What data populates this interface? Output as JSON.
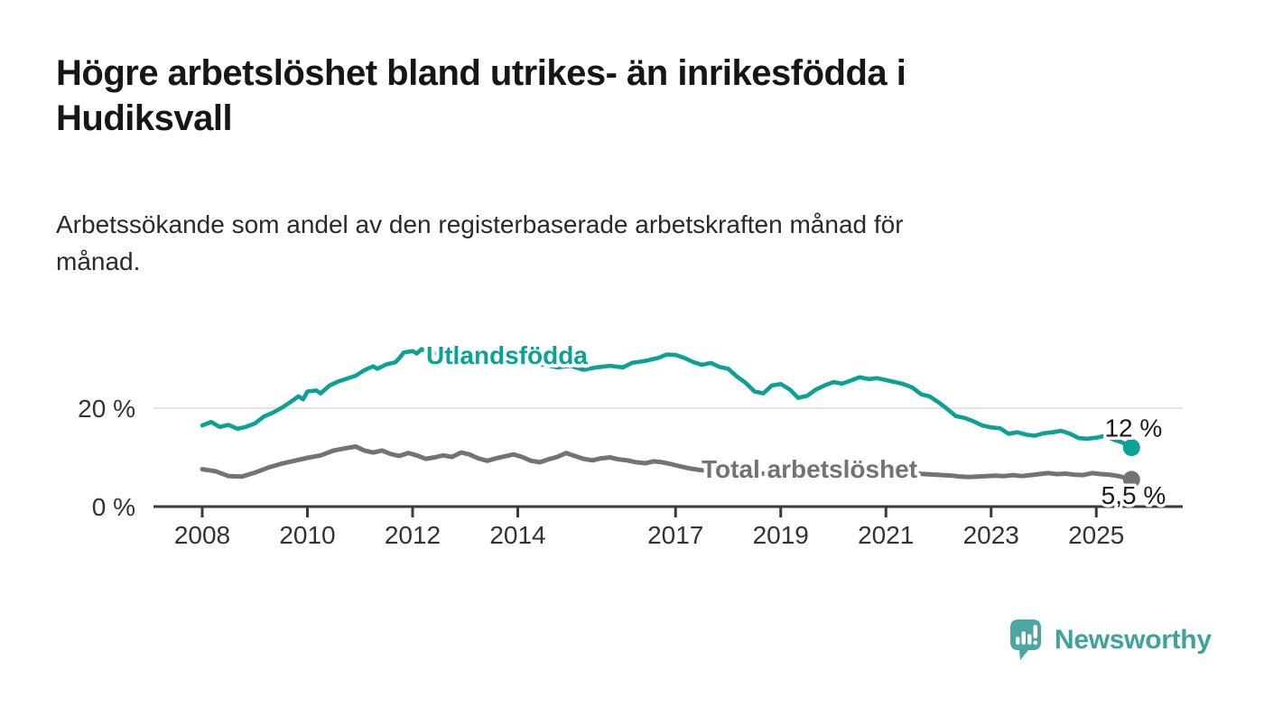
{
  "title": {
    "line1": "Högre arbetslöshet bland utrikes- än inrikesfödda i",
    "line2": "Hudiksvall"
  },
  "subtitle": {
    "line1": "Arbetssökande som andel av den registerbaserade arbetskraften månad för",
    "line2": "månad."
  },
  "branding": {
    "name": "Newsworthy",
    "bubble_color": "#4BA7A0",
    "wordmark_color": "#3BA49C"
  },
  "colors": {
    "axis": "#3b3b3b",
    "tick_label": "#333333",
    "gridline": "#e4e4e4",
    "end_label_text": "#1a1a1a",
    "background": "#ffffff"
  },
  "chart_data": {
    "type": "line",
    "title": "Högre arbetslöshet bland utrikes- än inrikesfödda i Hudiksvall",
    "subtitle": "Arbetssökande som andel av den registerbaserade arbetskraften månad för månad.",
    "x_unit": "year (monthly observations)",
    "y_unit": "percent of register-based labour force",
    "x_ticks": [
      "2008",
      "2010",
      "2012",
      "2014",
      "2017",
      "2019",
      "2021",
      "2023",
      "2025"
    ],
    "y_ticks": [
      {
        "value": 0,
        "label": "0 %"
      },
      {
        "value": 20,
        "label": "20 %"
      }
    ],
    "x_range": [
      2007.6,
      2026.3
    ],
    "y_range": [
      0,
      36
    ],
    "grid": "y-only",
    "legend_position": "inline-labels",
    "series": [
      {
        "name": "Utlandsfödda",
        "color": "#0BA295",
        "end_value_label": "12 %",
        "end_value": 12,
        "points": [
          [
            2008.0,
            16.5
          ],
          [
            2008.17,
            17.2
          ],
          [
            2008.33,
            16.2
          ],
          [
            2008.5,
            16.6
          ],
          [
            2008.67,
            15.8
          ],
          [
            2008.83,
            16.2
          ],
          [
            2009.0,
            16.9
          ],
          [
            2009.17,
            18.3
          ],
          [
            2009.33,
            19.0
          ],
          [
            2009.5,
            20.0
          ],
          [
            2009.67,
            21.2
          ],
          [
            2009.83,
            22.4
          ],
          [
            2009.92,
            21.8
          ],
          [
            2010.0,
            23.4
          ],
          [
            2010.17,
            23.6
          ],
          [
            2010.25,
            23.0
          ],
          [
            2010.42,
            24.6
          ],
          [
            2010.58,
            25.4
          ],
          [
            2010.75,
            26.0
          ],
          [
            2010.92,
            26.6
          ],
          [
            2011.08,
            27.7
          ],
          [
            2011.25,
            28.5
          ],
          [
            2011.33,
            28.0
          ],
          [
            2011.5,
            28.9
          ],
          [
            2011.67,
            29.3
          ],
          [
            2011.75,
            30.2
          ],
          [
            2011.83,
            31.3
          ],
          [
            2012.0,
            31.6
          ],
          [
            2012.08,
            31.1
          ],
          [
            2012.17,
            32.0
          ],
          [
            2012.33,
            31.3
          ],
          [
            2012.5,
            31.0
          ],
          [
            2012.75,
            30.6
          ],
          [
            2013.0,
            30.9
          ],
          [
            2013.25,
            30.2
          ],
          [
            2013.5,
            30.5
          ],
          [
            2013.75,
            29.6
          ],
          [
            2014.0,
            29.9
          ],
          [
            2014.25,
            29.0
          ],
          [
            2014.5,
            28.8
          ],
          [
            2014.75,
            28.3
          ],
          [
            2015.0,
            28.6
          ],
          [
            2015.25,
            27.8
          ],
          [
            2015.5,
            28.3
          ],
          [
            2015.75,
            28.6
          ],
          [
            2016.0,
            28.3
          ],
          [
            2016.17,
            29.2
          ],
          [
            2016.42,
            29.6
          ],
          [
            2016.67,
            30.2
          ],
          [
            2016.83,
            30.9
          ],
          [
            2017.0,
            30.8
          ],
          [
            2017.17,
            30.2
          ],
          [
            2017.33,
            29.4
          ],
          [
            2017.5,
            28.8
          ],
          [
            2017.67,
            29.2
          ],
          [
            2017.83,
            28.4
          ],
          [
            2018.0,
            28.0
          ],
          [
            2018.17,
            26.4
          ],
          [
            2018.33,
            25.2
          ],
          [
            2018.5,
            23.4
          ],
          [
            2018.67,
            23.0
          ],
          [
            2018.83,
            24.6
          ],
          [
            2019.0,
            24.9
          ],
          [
            2019.17,
            23.8
          ],
          [
            2019.33,
            22.1
          ],
          [
            2019.5,
            22.5
          ],
          [
            2019.67,
            23.8
          ],
          [
            2019.83,
            24.6
          ],
          [
            2020.0,
            25.3
          ],
          [
            2020.17,
            25.0
          ],
          [
            2020.33,
            25.6
          ],
          [
            2020.5,
            26.3
          ],
          [
            2020.67,
            25.9
          ],
          [
            2020.83,
            26.1
          ],
          [
            2021.0,
            25.7
          ],
          [
            2021.17,
            25.3
          ],
          [
            2021.33,
            24.9
          ],
          [
            2021.5,
            24.2
          ],
          [
            2021.67,
            22.8
          ],
          [
            2021.83,
            22.4
          ],
          [
            2022.0,
            21.2
          ],
          [
            2022.17,
            19.8
          ],
          [
            2022.33,
            18.4
          ],
          [
            2022.5,
            18.0
          ],
          [
            2022.67,
            17.3
          ],
          [
            2022.83,
            16.5
          ],
          [
            2023.0,
            16.1
          ],
          [
            2023.17,
            15.9
          ],
          [
            2023.33,
            14.8
          ],
          [
            2023.5,
            15.1
          ],
          [
            2023.67,
            14.6
          ],
          [
            2023.83,
            14.4
          ],
          [
            2024.0,
            14.9
          ],
          [
            2024.17,
            15.1
          ],
          [
            2024.33,
            15.4
          ],
          [
            2024.5,
            14.8
          ],
          [
            2024.67,
            13.9
          ],
          [
            2024.83,
            13.8
          ],
          [
            2025.0,
            14.0
          ],
          [
            2025.17,
            14.4
          ],
          [
            2025.33,
            13.6
          ],
          [
            2025.5,
            13.0
          ],
          [
            2025.67,
            12.0
          ]
        ]
      },
      {
        "name": "Total arbetslöshet",
        "color": "#737373",
        "end_value_label": "5,5 %",
        "end_value": 5.5,
        "points": [
          [
            2008.0,
            7.6
          ],
          [
            2008.25,
            7.2
          ],
          [
            2008.5,
            6.2
          ],
          [
            2008.75,
            6.1
          ],
          [
            2009.0,
            6.9
          ],
          [
            2009.25,
            7.9
          ],
          [
            2009.5,
            8.7
          ],
          [
            2009.75,
            9.3
          ],
          [
            2010.0,
            9.9
          ],
          [
            2010.25,
            10.4
          ],
          [
            2010.5,
            11.4
          ],
          [
            2010.75,
            11.9
          ],
          [
            2010.92,
            12.2
          ],
          [
            2011.08,
            11.4
          ],
          [
            2011.25,
            11.0
          ],
          [
            2011.42,
            11.4
          ],
          [
            2011.58,
            10.7
          ],
          [
            2011.75,
            10.3
          ],
          [
            2011.92,
            10.9
          ],
          [
            2012.08,
            10.4
          ],
          [
            2012.25,
            9.7
          ],
          [
            2012.42,
            10.0
          ],
          [
            2012.58,
            10.4
          ],
          [
            2012.75,
            10.1
          ],
          [
            2012.92,
            11.0
          ],
          [
            2013.08,
            10.6
          ],
          [
            2013.25,
            9.8
          ],
          [
            2013.42,
            9.3
          ],
          [
            2013.58,
            9.8
          ],
          [
            2013.75,
            10.2
          ],
          [
            2013.92,
            10.6
          ],
          [
            2014.08,
            10.1
          ],
          [
            2014.25,
            9.3
          ],
          [
            2014.42,
            9.0
          ],
          [
            2014.58,
            9.6
          ],
          [
            2014.75,
            10.1
          ],
          [
            2014.92,
            10.9
          ],
          [
            2015.08,
            10.3
          ],
          [
            2015.25,
            9.7
          ],
          [
            2015.42,
            9.4
          ],
          [
            2015.58,
            9.8
          ],
          [
            2015.75,
            10.0
          ],
          [
            2015.92,
            9.6
          ],
          [
            2016.08,
            9.4
          ],
          [
            2016.25,
            9.0
          ],
          [
            2016.42,
            8.8
          ],
          [
            2016.58,
            9.2
          ],
          [
            2016.75,
            9.0
          ],
          [
            2016.92,
            8.6
          ],
          [
            2017.08,
            8.2
          ],
          [
            2017.25,
            7.8
          ],
          [
            2017.42,
            7.5
          ],
          [
            2017.58,
            7.3
          ],
          [
            2017.75,
            7.2
          ],
          [
            2017.92,
            7.4
          ],
          [
            2018.08,
            7.2
          ],
          [
            2018.25,
            6.9
          ],
          [
            2018.42,
            6.7
          ],
          [
            2018.58,
            6.6
          ],
          [
            2018.75,
            6.8
          ],
          [
            2018.92,
            7.0
          ],
          [
            2019.08,
            6.8
          ],
          [
            2019.25,
            6.6
          ],
          [
            2019.42,
            6.5
          ],
          [
            2019.58,
            6.7
          ],
          [
            2019.75,
            6.9
          ],
          [
            2019.92,
            7.1
          ],
          [
            2020.08,
            7.3
          ],
          [
            2020.25,
            7.8
          ],
          [
            2020.42,
            8.0
          ],
          [
            2020.58,
            7.8
          ],
          [
            2020.75,
            7.6
          ],
          [
            2020.92,
            7.5
          ],
          [
            2021.08,
            7.3
          ],
          [
            2021.25,
            7.1
          ],
          [
            2021.42,
            6.9
          ],
          [
            2021.58,
            6.7
          ],
          [
            2021.75,
            6.6
          ],
          [
            2021.92,
            6.5
          ],
          [
            2022.08,
            6.4
          ],
          [
            2022.25,
            6.3
          ],
          [
            2022.42,
            6.1
          ],
          [
            2022.58,
            6.0
          ],
          [
            2022.75,
            6.1
          ],
          [
            2022.92,
            6.2
          ],
          [
            2023.08,
            6.3
          ],
          [
            2023.25,
            6.2
          ],
          [
            2023.42,
            6.4
          ],
          [
            2023.58,
            6.2
          ],
          [
            2023.75,
            6.4
          ],
          [
            2023.92,
            6.6
          ],
          [
            2024.08,
            6.8
          ],
          [
            2024.25,
            6.6
          ],
          [
            2024.42,
            6.7
          ],
          [
            2024.58,
            6.5
          ],
          [
            2024.75,
            6.4
          ],
          [
            2024.92,
            6.8
          ],
          [
            2025.08,
            6.6
          ],
          [
            2025.25,
            6.5
          ],
          [
            2025.42,
            6.2
          ],
          [
            2025.58,
            5.8
          ],
          [
            2025.67,
            5.5
          ]
        ]
      }
    ]
  }
}
